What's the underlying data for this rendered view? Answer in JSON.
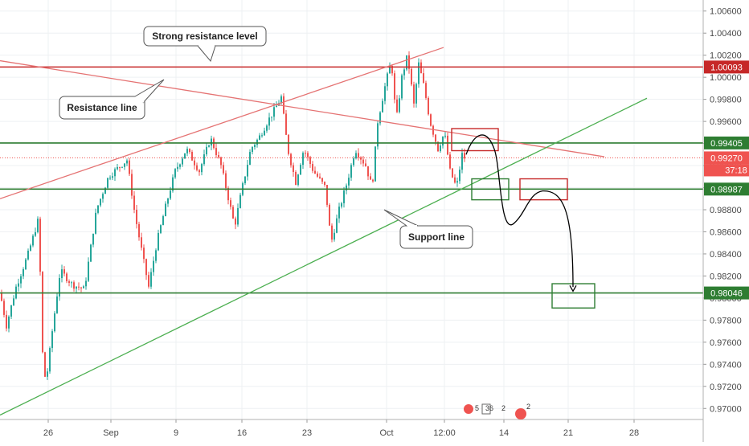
{
  "chart_data": {
    "type": "candlestick",
    "title": "",
    "xlabel": "",
    "ylabel": "",
    "ylim": [
      0.969,
      1.007
    ],
    "grid": true,
    "y_ticks": [
      "0.97000",
      "0.97200",
      "0.97400",
      "0.97600",
      "0.97800",
      "0.98000",
      "0.98200",
      "0.98400",
      "0.98600",
      "0.98800",
      "0.99000",
      "0.99200",
      "0.99400",
      "0.99600",
      "0.99800",
      "1.00000",
      "1.00200",
      "1.00400",
      "1.00600"
    ],
    "x_ticks": [
      "26",
      "Sep",
      "9",
      "16",
      "23",
      "Oct",
      "12:00",
      "14",
      "21",
      "28"
    ],
    "levels": [
      {
        "name": "strong-resistance",
        "value": 1.00093,
        "label": "1.00093",
        "color": "#c62828"
      },
      {
        "name": "resistance-zone",
        "value": 0.99405,
        "label": "0.99405",
        "color": "#2e7d32"
      },
      {
        "name": "current-price",
        "value": 0.9927,
        "label": "0.99270",
        "color": "#ef5350",
        "countdown": "37:18"
      },
      {
        "name": "support-zone",
        "value": 0.98987,
        "label": "0.98987",
        "color": "#2e7d32"
      },
      {
        "name": "target",
        "value": 0.98046,
        "label": "0.98046",
        "color": "#2e7d32"
      }
    ],
    "annotations": [
      {
        "name": "strong-resistance-callout",
        "text": "Strong resistance level"
      },
      {
        "name": "resistance-line-callout",
        "text": "Resistance line"
      },
      {
        "name": "support-line-callout",
        "text": "Support line"
      }
    ],
    "indicators": {
      "count1": "5",
      "count2": "36",
      "count3": "2",
      "count4": "2"
    },
    "colors": {
      "up": "#26a69a",
      "down": "#ef5350",
      "red_line": "#e57373",
      "green_line": "#4caf50",
      "grid": "#eef0f3"
    }
  }
}
